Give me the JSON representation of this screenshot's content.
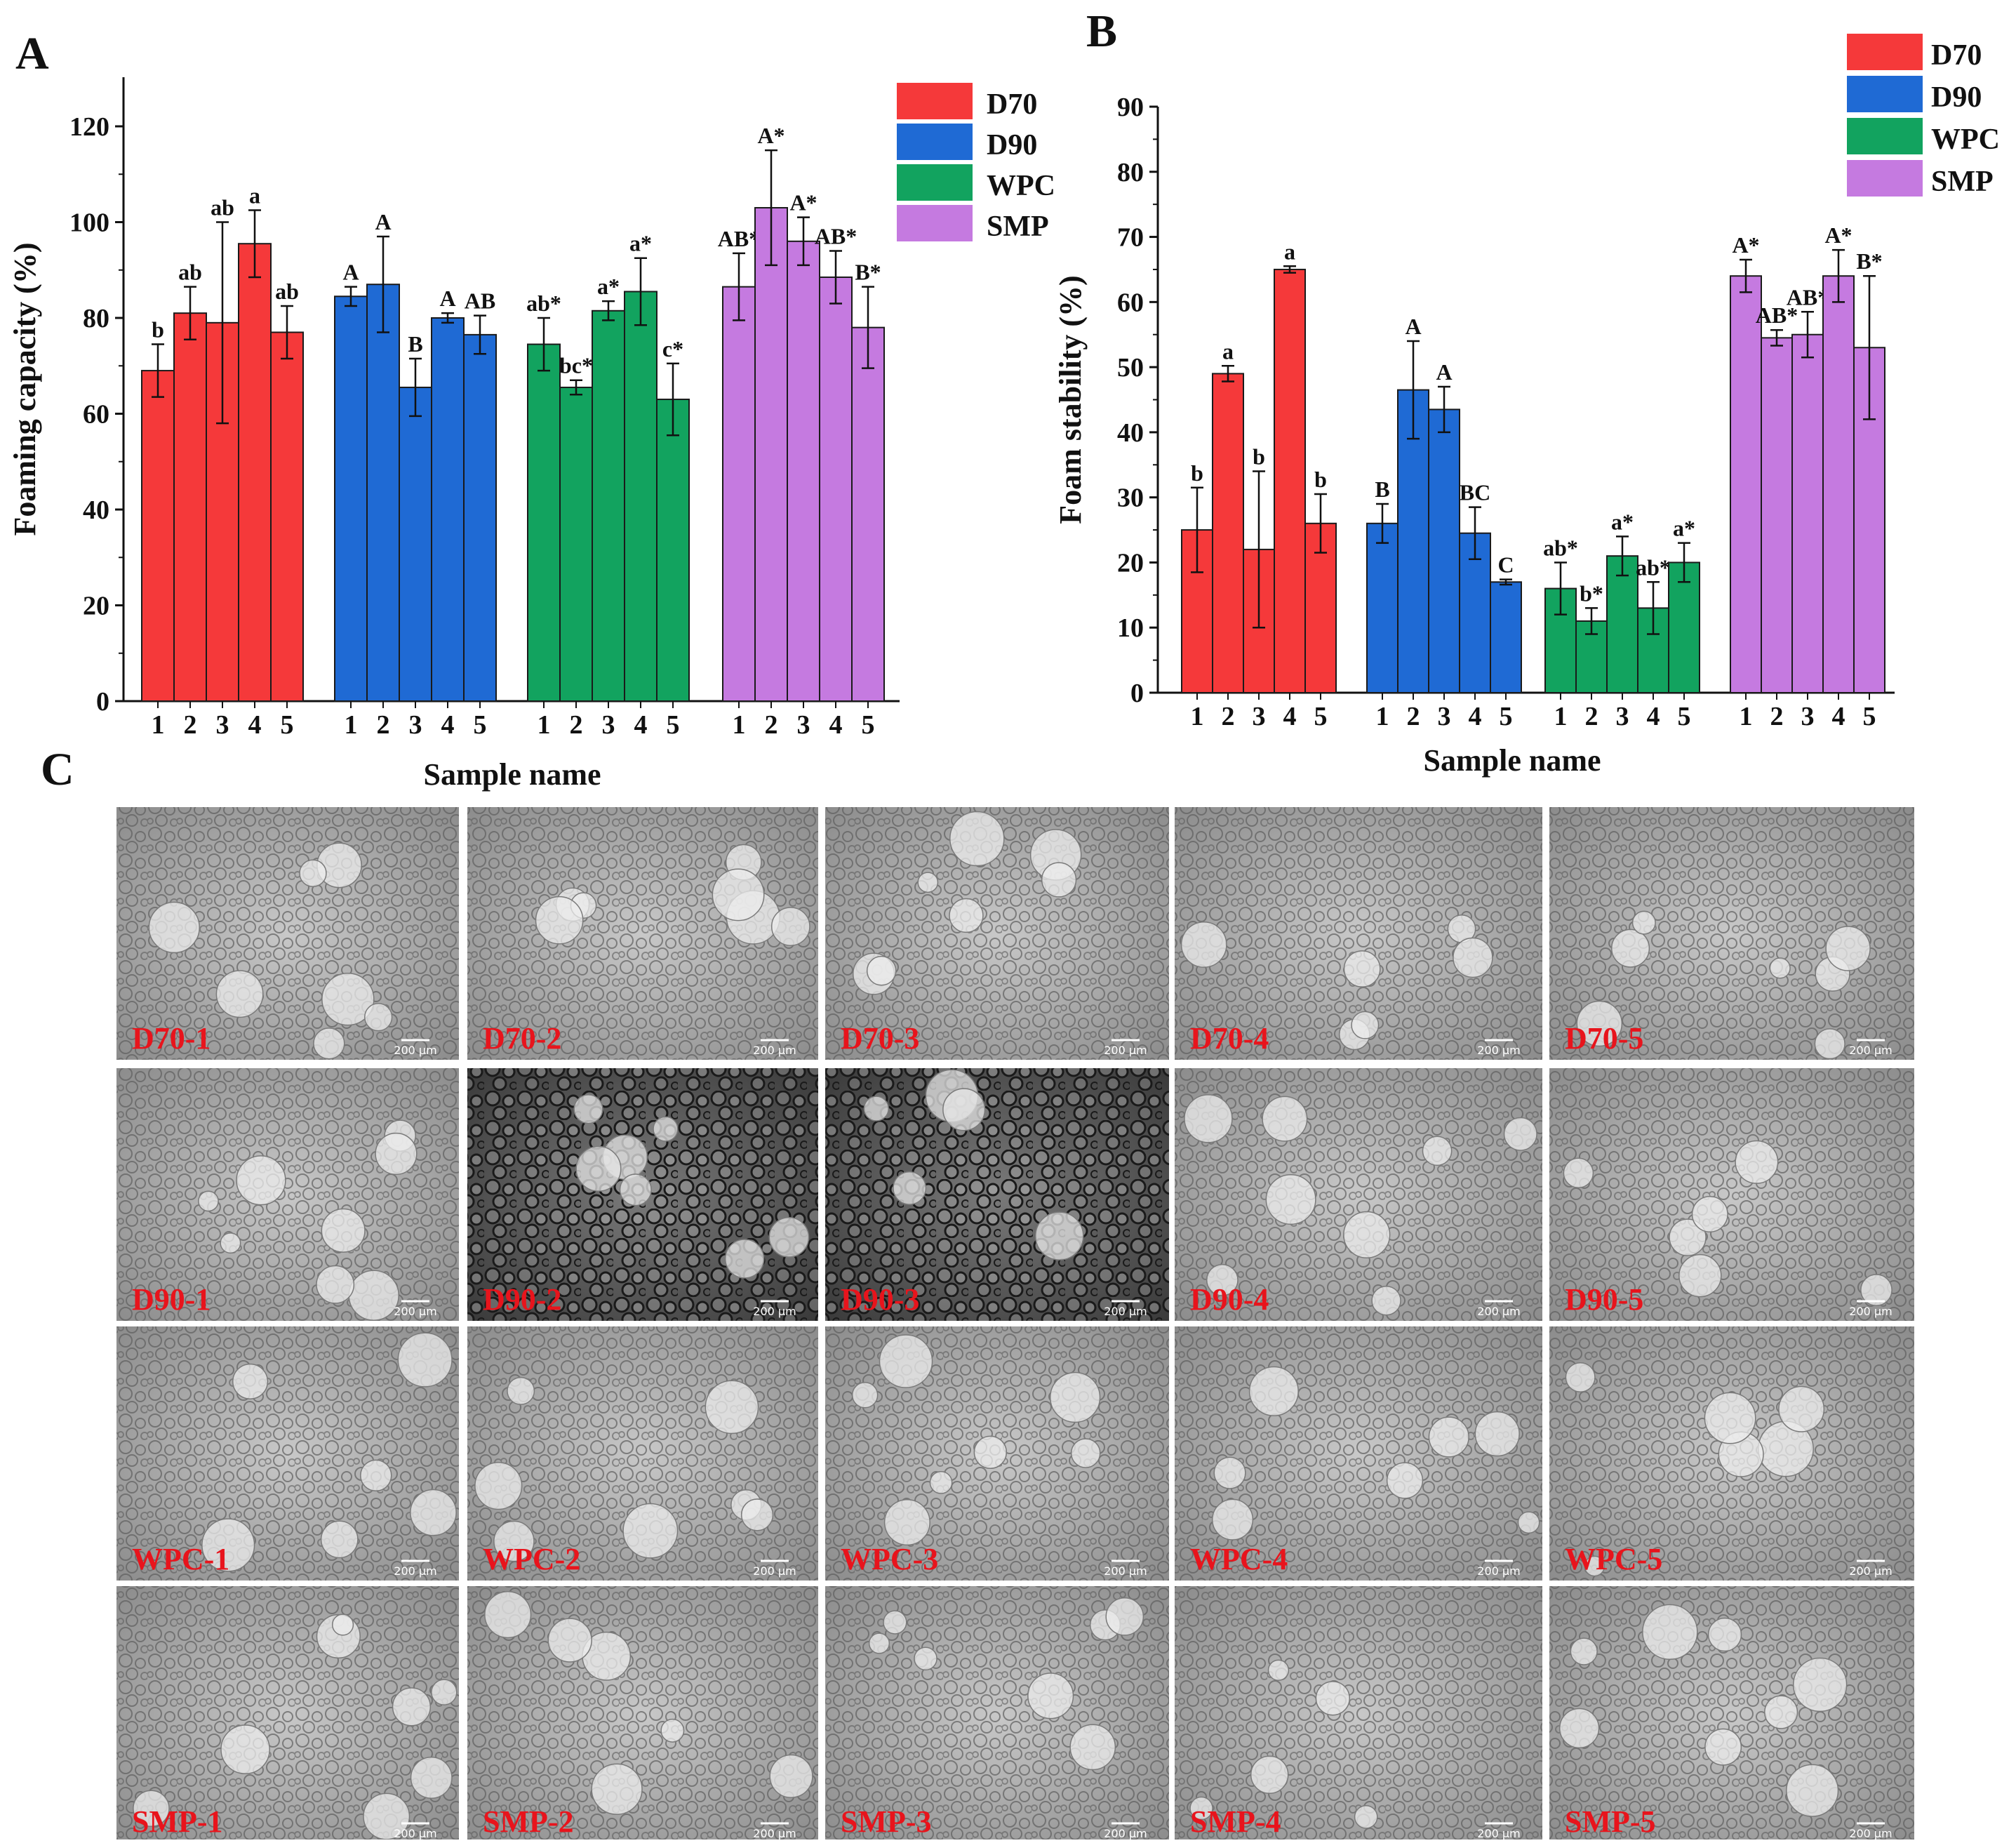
{
  "panels": {
    "a": "A",
    "b": "B",
    "c": "C"
  },
  "colors": {
    "D70": "#f5393a",
    "D90": "#1f6ad4",
    "WPC": "#12a35f",
    "SMP": "#c57ae0"
  },
  "legend": [
    "D70",
    "D90",
    "WPC",
    "SMP"
  ],
  "chart_data": [
    {
      "type": "bar",
      "panel": "A",
      "ylabel": "Foaming capacity (%)",
      "xlabel": "Sample name",
      "ylim": [
        0,
        130
      ],
      "yticks": [
        0,
        20,
        40,
        60,
        80,
        100,
        120
      ],
      "categories": [
        "1",
        "2",
        "3",
        "4",
        "5"
      ],
      "series": [
        {
          "name": "D70",
          "values": [
            69,
            81,
            79,
            95.5,
            77
          ],
          "errors": [
            5.5,
            5.5,
            21,
            7,
            5.5
          ],
          "labels": [
            "b",
            "ab",
            "ab",
            "a",
            "ab"
          ]
        },
        {
          "name": "D90",
          "values": [
            84.5,
            87,
            65.5,
            80,
            76.5
          ],
          "errors": [
            2,
            10,
            6,
            1,
            4
          ],
          "labels": [
            "A",
            "A",
            "B",
            "A",
            "AB"
          ]
        },
        {
          "name": "WPC",
          "values": [
            74.5,
            65.5,
            81.5,
            85.5,
            63
          ],
          "errors": [
            5.5,
            1.5,
            2,
            7,
            7.5
          ],
          "labels": [
            "ab*",
            "bc*",
            "a*",
            "a*",
            "c*"
          ]
        },
        {
          "name": "SMP",
          "values": [
            86.5,
            103,
            96,
            88.5,
            78
          ],
          "errors": [
            7,
            12,
            5,
            5.5,
            8.5
          ],
          "labels": [
            "AB*",
            "A*",
            "A*",
            "AB*",
            "B*"
          ]
        }
      ]
    },
    {
      "type": "bar",
      "panel": "B",
      "ylabel": "Foam stability (%)",
      "xlabel": "Sample name",
      "ylim": [
        0,
        90
      ],
      "yticks": [
        0,
        10,
        20,
        30,
        40,
        50,
        60,
        70,
        80,
        90
      ],
      "categories": [
        "1",
        "2",
        "3",
        "4",
        "5"
      ],
      "series": [
        {
          "name": "D70",
          "values": [
            25,
            49,
            22,
            65,
            26
          ],
          "errors": [
            6.5,
            1.2,
            12,
            0.5,
            4.5
          ],
          "labels": [
            "b",
            "a",
            "b",
            "a",
            "b"
          ]
        },
        {
          "name": "D90",
          "values": [
            26,
            46.5,
            43.5,
            24.5,
            17
          ],
          "errors": [
            3,
            7.5,
            3.5,
            4,
            0.4
          ],
          "labels": [
            "B",
            "A",
            "A",
            "BC",
            "C"
          ]
        },
        {
          "name": "WPC",
          "values": [
            16,
            11,
            21,
            13,
            20
          ],
          "errors": [
            4,
            2,
            3,
            4,
            3
          ],
          "labels": [
            "ab*",
            "b*",
            "a*",
            "ab*",
            "a*"
          ]
        },
        {
          "name": "SMP",
          "values": [
            64,
            54.5,
            55,
            64,
            53
          ],
          "errors": [
            2.5,
            1.2,
            3.5,
            4,
            11
          ],
          "labels": [
            "A*",
            "AB*",
            "AB*",
            "A*",
            "B*"
          ]
        }
      ]
    }
  ],
  "micrographs": {
    "scale": "200 μm",
    "rows": [
      [
        "D70-1",
        "D70-2",
        "D70-3",
        "D70-4",
        "D70-5"
      ],
      [
        "D90-1",
        "D90-2",
        "D90-3",
        "D90-4",
        "D90-5"
      ],
      [
        "WPC-1",
        "WPC-2",
        "WPC-3",
        "WPC-4",
        "WPC-5"
      ],
      [
        "SMP-1",
        "SMP-2",
        "SMP-3",
        "SMP-4",
        "SMP-5"
      ]
    ]
  }
}
